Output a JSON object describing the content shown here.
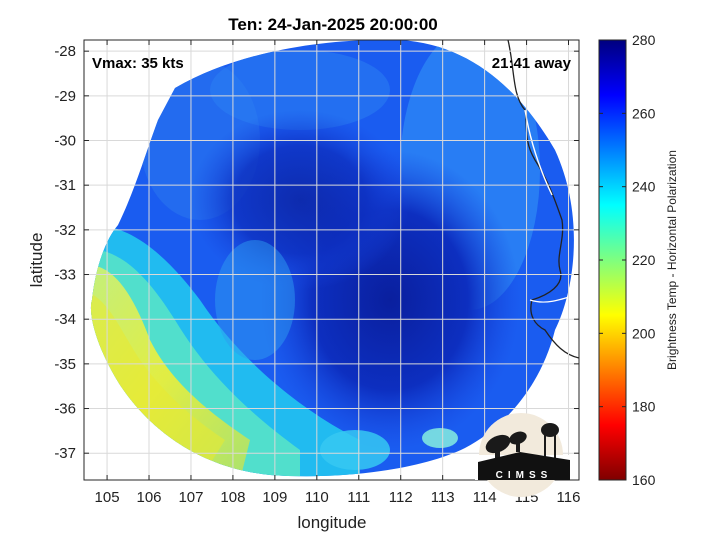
{
  "chart_data": {
    "type": "heatmap",
    "title": "Ten: 24-Jan-2025 20:00:00",
    "xlabel": "longitude",
    "ylabel": "latitude",
    "xlim": [
      104.45,
      116.25
    ],
    "ylim": [
      -37.6,
      -27.75
    ],
    "x_ticks": [
      105,
      106,
      107,
      108,
      109,
      110,
      111,
      112,
      113,
      114,
      115,
      116
    ],
    "y_ticks": [
      -28,
      -29,
      -30,
      -31,
      -32,
      -33,
      -34,
      -35,
      -36,
      -37
    ],
    "grid": true,
    "annotations": {
      "vmax": "Vmax: 35 kts",
      "away": "21:41 away"
    },
    "colorbar": {
      "label": "Brightness Temp - Horizontal Polarization",
      "range": [
        160,
        280
      ],
      "ticks": [
        160,
        180,
        200,
        220,
        240,
        260,
        280
      ],
      "colormap": "jet"
    },
    "field_description": "cold cloud core near center, warm band along southwest",
    "logo_text": "CIMSS"
  }
}
